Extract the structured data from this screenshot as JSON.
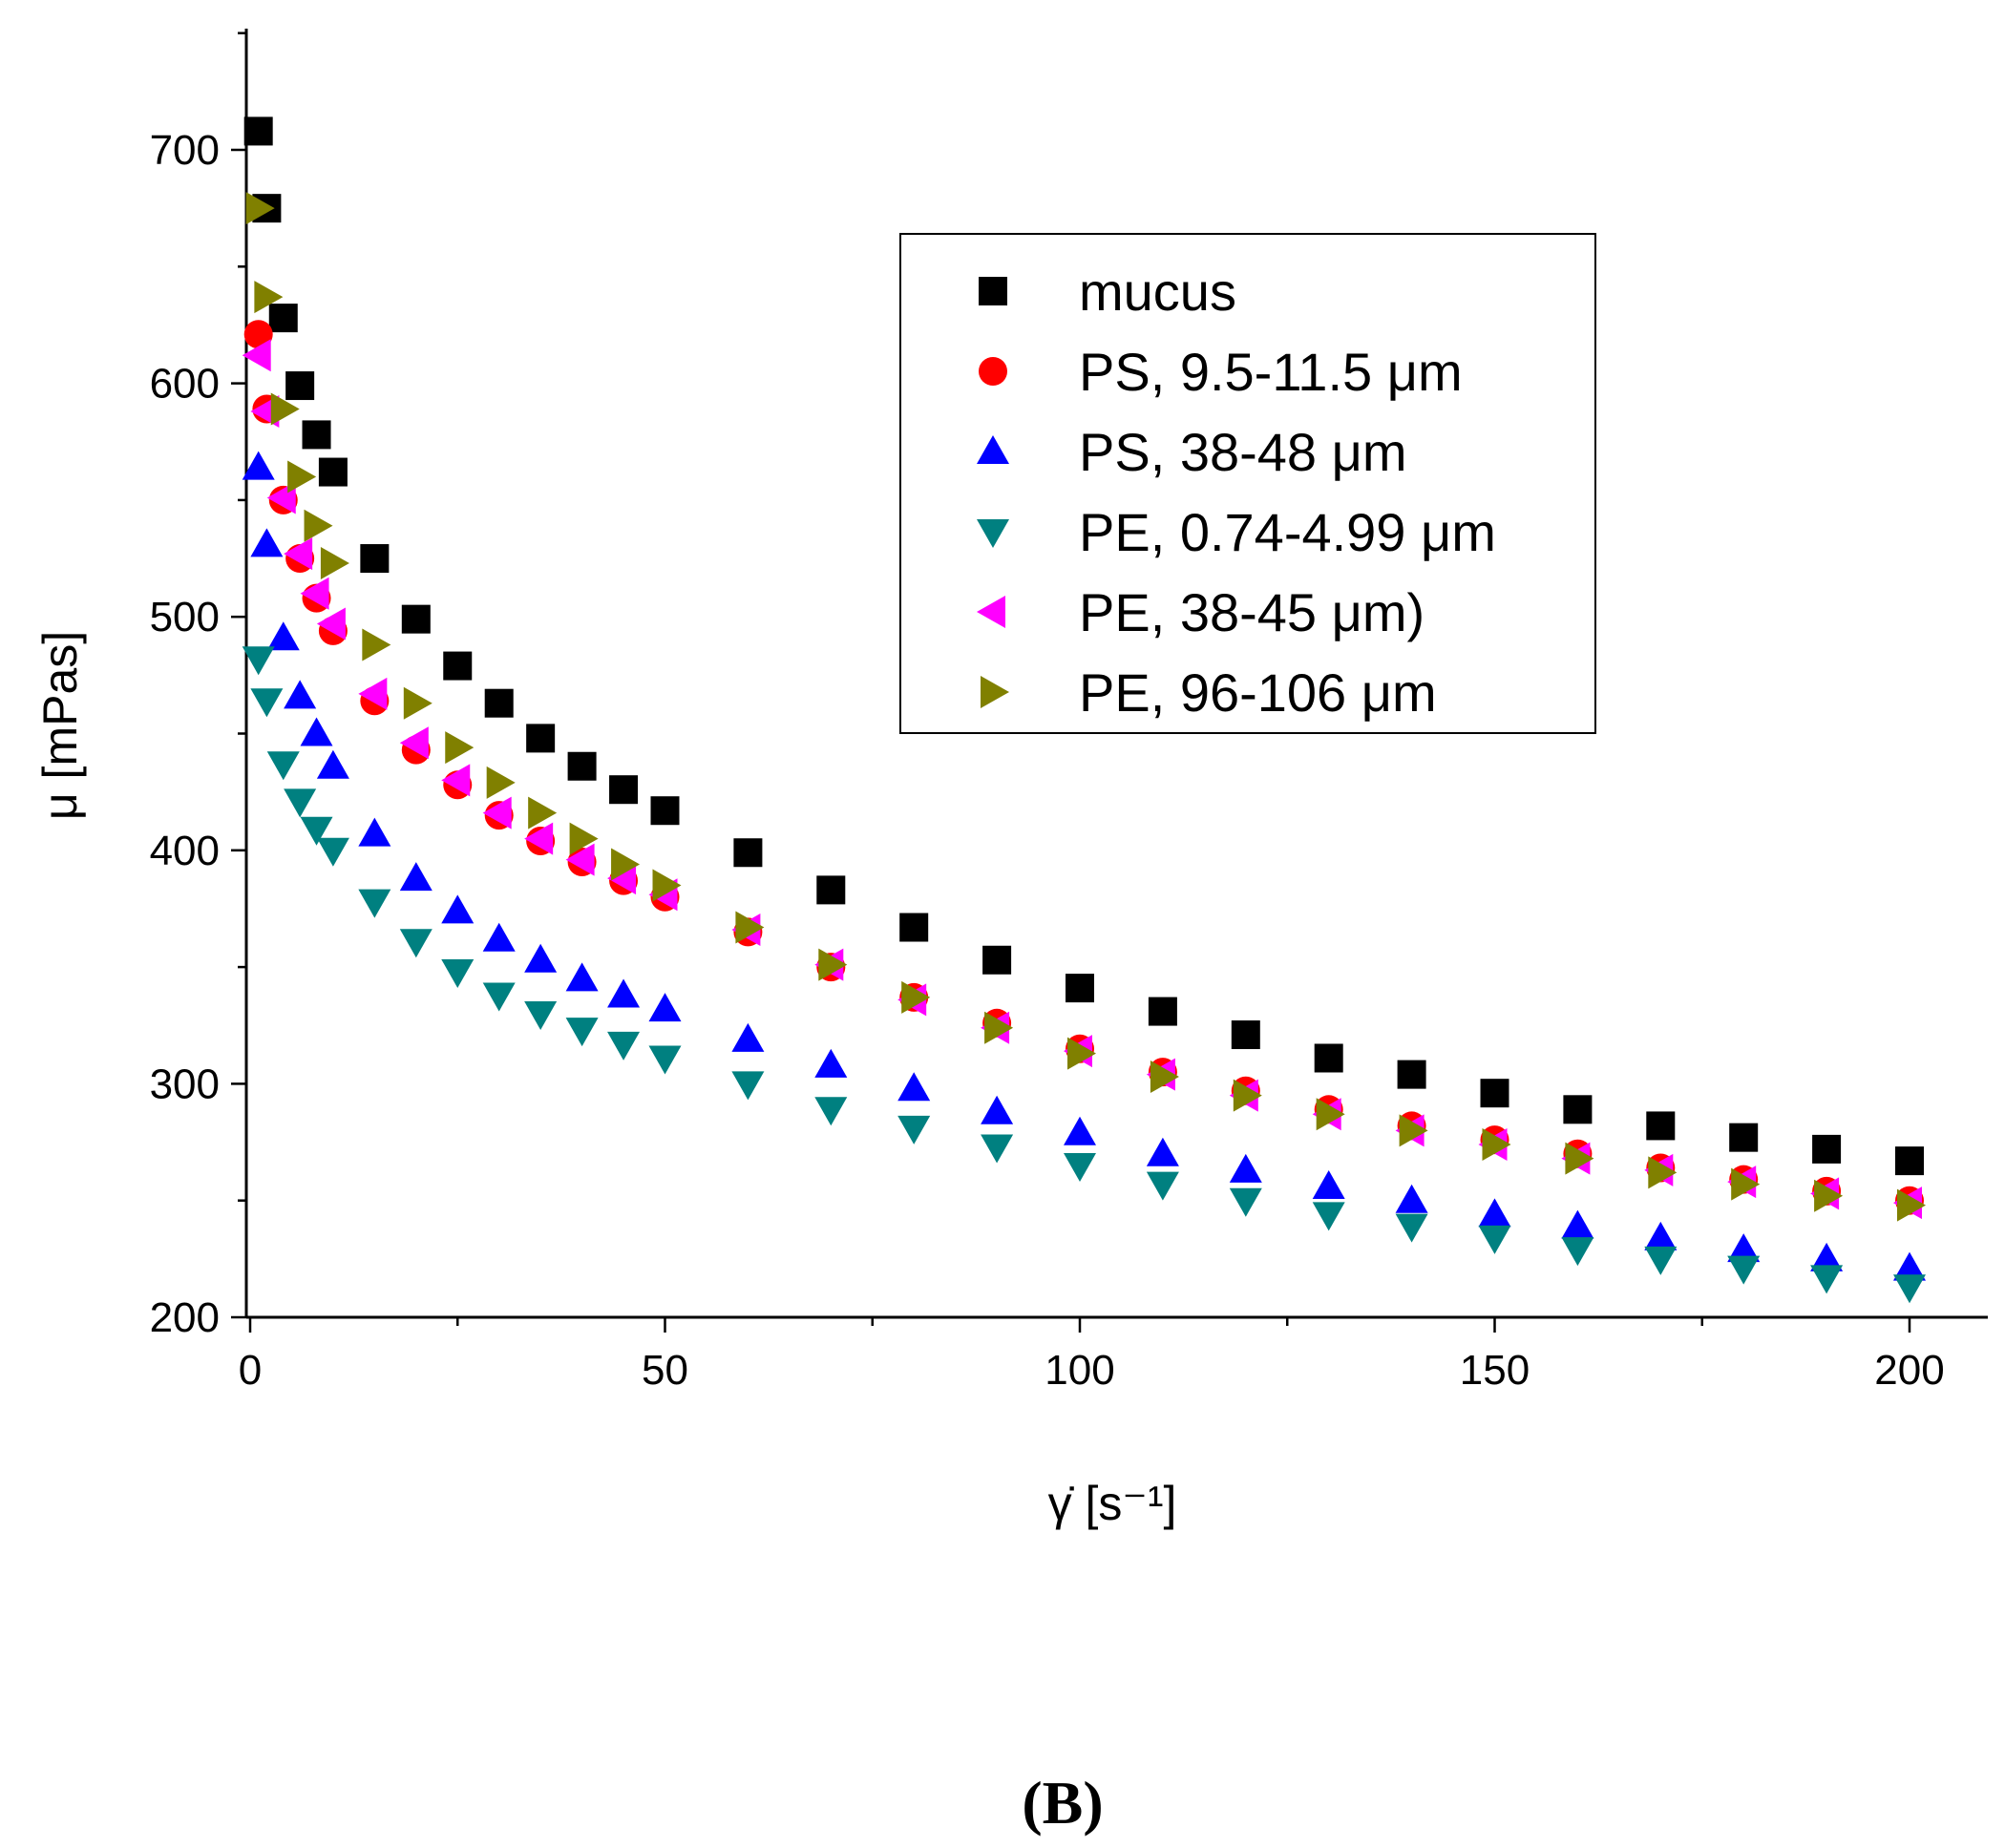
{
  "chart_data": {
    "type": "scatter",
    "title": "",
    "xlabel": "γ̇ [s⁻¹]",
    "ylabel": "μ [mPas]",
    "xlim": [
      0,
      210
    ],
    "ylim": [
      200,
      750
    ],
    "x_ticks": [
      0,
      50,
      100,
      150,
      200
    ],
    "y_ticks": [
      200,
      300,
      400,
      500,
      600,
      700
    ],
    "grid": false,
    "legend_position": "top-right",
    "panel_label": "(B)",
    "x": [
      1,
      2,
      4,
      6,
      8,
      10,
      15,
      20,
      25,
      30,
      35,
      40,
      45,
      50,
      60,
      70,
      80,
      90,
      100,
      110,
      120,
      130,
      140,
      150,
      160,
      170,
      180,
      190,
      200
    ],
    "series": [
      {
        "name": "mucus",
        "marker": "square",
        "color": "#000000",
        "values": [
          708,
          675,
          628,
          599,
          578,
          562,
          525,
          499,
          479,
          463,
          448,
          436,
          426,
          417,
          399,
          383,
          367,
          353,
          341,
          331,
          321,
          311,
          304,
          296,
          289,
          282,
          277,
          272,
          267
        ]
      },
      {
        "name": "PS, 9.5-11.5 μm",
        "marker": "circle",
        "color": "#ff0000",
        "values": [
          621,
          589,
          550,
          525,
          508,
          494,
          464,
          443,
          428,
          415,
          404,
          395,
          387,
          380,
          365,
          350,
          337,
          326,
          315,
          305,
          297,
          289,
          282,
          276,
          270,
          264,
          259,
          254,
          250
        ]
      },
      {
        "name": "PS, 38-48 μm",
        "marker": "triangle-up",
        "color": "#0000ff",
        "values": [
          564,
          531,
          491,
          466,
          450,
          436,
          407,
          388,
          374,
          362,
          353,
          345,
          338,
          332,
          319,
          308,
          298,
          288,
          279,
          270,
          263,
          256,
          250,
          244,
          239,
          234,
          229,
          225,
          221
        ]
      },
      {
        "name": "PE, 0.74-4.99 μm",
        "marker": "triangle-down",
        "color": "#008080",
        "values": [
          482,
          464,
          437,
          421,
          409,
          400,
          378,
          361,
          348,
          338,
          330,
          323,
          317,
          311,
          300,
          289,
          281,
          273,
          265,
          257,
          250,
          244,
          239,
          234,
          229,
          225,
          221,
          217,
          213
        ]
      },
      {
        "name": "PE, 38-45 μm)",
        "marker": "triangle-left",
        "color": "#ff00ff",
        "values": [
          612,
          588,
          551,
          527,
          510,
          497,
          467,
          446,
          430,
          416,
          405,
          396,
          388,
          381,
          366,
          351,
          336,
          324,
          314,
          304,
          295,
          287,
          280,
          274,
          268,
          263,
          258,
          253,
          249
        ]
      },
      {
        "name": "PE, 96-106 μm",
        "marker": "triangle-right",
        "color": "#808000",
        "values": [
          675,
          637,
          589,
          560,
          539,
          523,
          488,
          463,
          444,
          429,
          416,
          405,
          394,
          385,
          367,
          351,
          337,
          324,
          313,
          303,
          295,
          287,
          280,
          274,
          268,
          262,
          257,
          252,
          248
        ]
      }
    ]
  }
}
